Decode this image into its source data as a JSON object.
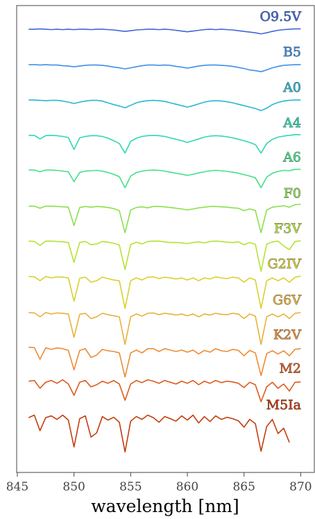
{
  "chart_data": {
    "type": "line",
    "xlabel": "wavelength [nm]",
    "xlim": [
      844.94,
      871.2
    ],
    "ylim": [
      0,
      13.2
    ],
    "xticks": [
      845,
      850,
      855,
      860,
      865,
      870
    ],
    "x": [
      846,
      846.5,
      847,
      847.5,
      848,
      848.5,
      849,
      849.5,
      850,
      850.5,
      851,
      851.5,
      852,
      852.5,
      853,
      853.5,
      854,
      854.5,
      855,
      855.5,
      856,
      856.5,
      857,
      857.5,
      858,
      858.5,
      859,
      859.5,
      860,
      860.5,
      861,
      861.5,
      862,
      862.5,
      863,
      863.5,
      864,
      864.5,
      865,
      865.5,
      866,
      866.5,
      867,
      867.5,
      868,
      868.5,
      869,
      869.5,
      870
    ],
    "series": [
      {
        "name": "O9.5V",
        "color": "#4065d8",
        "values": [
          12.53,
          12.53,
          12.54,
          12.53,
          12.52,
          12.53,
          12.52,
          12.53,
          12.52,
          12.53,
          12.53,
          12.52,
          12.53,
          12.53,
          12.52,
          12.51,
          12.49,
          12.47,
          12.49,
          12.51,
          12.52,
          12.53,
          12.53,
          12.52,
          12.53,
          12.52,
          12.5,
          12.48,
          12.46,
          12.48,
          12.5,
          12.52,
          12.53,
          12.52,
          12.53,
          12.52,
          12.51,
          12.49,
          12.47,
          12.45,
          12.43,
          12.4,
          12.43,
          12.47,
          12.5,
          12.52,
          12.53,
          12.54,
          12.54
        ]
      },
      {
        "name": "B5",
        "color": "#3e8fe8",
        "values": [
          11.53,
          11.53,
          11.52,
          11.53,
          11.52,
          11.52,
          11.5,
          11.49,
          11.47,
          11.49,
          11.51,
          11.52,
          11.52,
          11.51,
          11.49,
          11.46,
          11.44,
          11.41,
          11.44,
          11.47,
          11.5,
          11.52,
          11.52,
          11.51,
          11.52,
          11.51,
          11.48,
          11.46,
          11.43,
          11.46,
          11.49,
          11.51,
          11.52,
          11.52,
          11.51,
          11.5,
          11.48,
          11.45,
          11.42,
          11.38,
          11.36,
          11.33,
          11.38,
          11.44,
          11.48,
          11.51,
          11.52,
          11.53,
          11.53
        ]
      },
      {
        "name": "A0",
        "color": "#29b6d4",
        "values": [
          10.53,
          10.53,
          10.52,
          10.51,
          10.52,
          10.52,
          10.5,
          10.47,
          10.43,
          10.47,
          10.5,
          10.52,
          10.52,
          10.5,
          10.45,
          10.4,
          10.36,
          10.31,
          10.38,
          10.45,
          10.49,
          10.51,
          10.52,
          10.51,
          10.49,
          10.45,
          10.41,
          10.37,
          10.33,
          10.37,
          10.42,
          10.47,
          10.5,
          10.51,
          10.5,
          10.48,
          10.45,
          10.41,
          10.37,
          10.33,
          10.29,
          10.23,
          10.3,
          10.4,
          10.46,
          10.5,
          10.52,
          10.53,
          10.53
        ]
      },
      {
        "name": "A4",
        "color": "#2fd7b0",
        "values": [
          9.53,
          9.53,
          9.43,
          9.52,
          9.53,
          9.52,
          9.5,
          9.47,
          9.13,
          9.46,
          9.5,
          9.52,
          9.52,
          9.5,
          9.45,
          9.38,
          9.3,
          9.03,
          9.36,
          9.45,
          9.5,
          9.52,
          9.53,
          9.52,
          9.5,
          9.46,
          9.42,
          9.38,
          9.33,
          9.38,
          9.43,
          9.48,
          9.51,
          9.52,
          9.51,
          9.49,
          9.46,
          9.42,
          9.38,
          9.33,
          9.27,
          9.03,
          9.3,
          9.42,
          9.48,
          9.51,
          9.53,
          9.55,
          9.55
        ]
      },
      {
        "name": "A6",
        "color": "#44e08a",
        "values": [
          8.55,
          8.55,
          8.5,
          8.55,
          8.55,
          8.54,
          8.52,
          8.5,
          8.22,
          8.48,
          8.52,
          8.53,
          8.54,
          8.52,
          8.48,
          8.43,
          8.36,
          8.05,
          8.38,
          8.48,
          8.52,
          8.54,
          8.55,
          8.54,
          8.52,
          8.49,
          8.46,
          8.43,
          8.4,
          8.43,
          8.47,
          8.5,
          8.53,
          8.54,
          8.53,
          8.51,
          8.49,
          8.46,
          8.42,
          8.38,
          8.33,
          8.05,
          8.35,
          8.46,
          8.51,
          8.54,
          8.53,
          8.57,
          8.57
        ]
      },
      {
        "name": "F0",
        "color": "#8ae04e",
        "values": [
          7.53,
          7.53,
          7.47,
          7.53,
          7.53,
          7.52,
          7.51,
          7.5,
          6.98,
          7.49,
          7.52,
          7.5,
          7.52,
          7.51,
          7.49,
          7.46,
          7.4,
          6.78,
          7.42,
          7.49,
          7.51,
          7.48,
          7.52,
          7.52,
          7.51,
          7.49,
          7.47,
          7.45,
          7.42,
          7.45,
          7.48,
          7.5,
          7.52,
          7.52,
          7.51,
          7.5,
          7.48,
          7.47,
          7.4,
          7.45,
          7.41,
          6.78,
          7.42,
          7.5,
          7.52,
          7.54,
          7.5,
          7.57,
          7.58
        ]
      },
      {
        "name": "F3V",
        "color": "#b5e234",
        "values": [
          6.54,
          6.53,
          6.42,
          6.54,
          6.54,
          6.53,
          6.52,
          6.5,
          5.94,
          6.5,
          6.53,
          6.44,
          6.46,
          6.53,
          6.51,
          6.48,
          6.43,
          5.74,
          6.44,
          6.51,
          6.46,
          6.53,
          6.54,
          6.54,
          6.52,
          6.5,
          6.5,
          6.49,
          6.47,
          6.5,
          6.52,
          6.49,
          6.53,
          6.54,
          6.53,
          6.51,
          6.5,
          6.52,
          6.44,
          6.5,
          6.45,
          5.69,
          6.45,
          6.52,
          6.54,
          6.4,
          6.3,
          6.53,
          6.55
        ]
      },
      {
        "name": "G2IV",
        "color": "#d8d030",
        "values": [
          5.54,
          5.53,
          5.42,
          5.54,
          5.5,
          5.53,
          5.52,
          5.5,
          4.84,
          5.49,
          5.52,
          5.38,
          5.42,
          5.52,
          5.48,
          5.44,
          5.42,
          4.64,
          5.42,
          5.5,
          5.44,
          5.52,
          5.53,
          5.48,
          5.52,
          5.5,
          5.47,
          5.5,
          5.44,
          5.5,
          5.42,
          5.5,
          5.47,
          5.53,
          5.5,
          5.48,
          5.52,
          5.5,
          5.38,
          5.5,
          5.44,
          4.64,
          5.42,
          5.5,
          5.42,
          5.5,
          5.38,
          5.52,
          5.55
        ]
      },
      {
        "name": "G6V",
        "color": "#e8b13a",
        "values": [
          4.52,
          4.51,
          4.4,
          4.52,
          4.48,
          4.51,
          4.5,
          4.48,
          3.82,
          4.47,
          4.5,
          4.35,
          4.4,
          4.5,
          4.46,
          4.43,
          4.4,
          3.62,
          4.4,
          4.48,
          4.42,
          4.5,
          4.51,
          4.46,
          4.5,
          4.48,
          4.45,
          4.48,
          4.43,
          4.48,
          4.4,
          4.48,
          4.45,
          4.5,
          4.47,
          4.46,
          4.5,
          4.48,
          4.35,
          4.48,
          4.42,
          3.62,
          4.4,
          4.48,
          4.4,
          4.48,
          4.35,
          4.5,
          4.52
        ]
      },
      {
        "name": "K2V",
        "color": "#ec8c35",
        "values": [
          3.54,
          3.53,
          3.2,
          3.52,
          3.48,
          3.52,
          3.5,
          3.45,
          2.9,
          3.45,
          3.5,
          3.25,
          3.32,
          3.48,
          3.44,
          3.42,
          3.38,
          2.7,
          3.38,
          3.46,
          3.38,
          3.5,
          3.5,
          3.42,
          3.5,
          3.46,
          3.42,
          3.46,
          3.4,
          3.46,
          3.35,
          3.45,
          3.4,
          3.5,
          3.44,
          3.42,
          3.48,
          3.45,
          3.3,
          3.45,
          3.38,
          2.74,
          3.36,
          3.44,
          3.35,
          3.44,
          3.3,
          3.48,
          3.5
        ]
      },
      {
        "name": "M2",
        "color": "#dc5a1e",
        "values": [
          2.58,
          2.6,
          2.38,
          2.55,
          2.6,
          2.52,
          2.62,
          2.5,
          2.18,
          2.55,
          2.6,
          2.42,
          2.48,
          2.58,
          2.52,
          2.6,
          2.5,
          2.04,
          2.5,
          2.6,
          2.54,
          2.62,
          2.58,
          2.52,
          2.6,
          2.55,
          2.5,
          2.58,
          2.52,
          2.6,
          2.48,
          2.58,
          2.52,
          2.6,
          2.54,
          2.58,
          2.56,
          2.52,
          2.4,
          2.55,
          2.48,
          2.0,
          2.42,
          2.55,
          2.38,
          2.5,
          2.3,
          2.55,
          2.56
        ]
      },
      {
        "name": "M5Ia",
        "color": "#c43c0e",
        "values": [
          1.55,
          1.62,
          1.18,
          1.55,
          1.6,
          1.5,
          1.62,
          1.48,
          0.72,
          1.52,
          1.6,
          1.0,
          1.12,
          1.58,
          1.48,
          1.56,
          1.42,
          0.58,
          1.45,
          1.58,
          1.5,
          1.62,
          1.55,
          1.42,
          1.58,
          1.52,
          1.45,
          1.6,
          1.48,
          1.62,
          1.4,
          1.58,
          1.44,
          1.6,
          1.5,
          1.56,
          1.52,
          1.46,
          1.28,
          1.5,
          1.38,
          0.6,
          1.3,
          1.5,
          1.1,
          1.25,
          0.85,
          null,
          null
        ]
      }
    ]
  }
}
